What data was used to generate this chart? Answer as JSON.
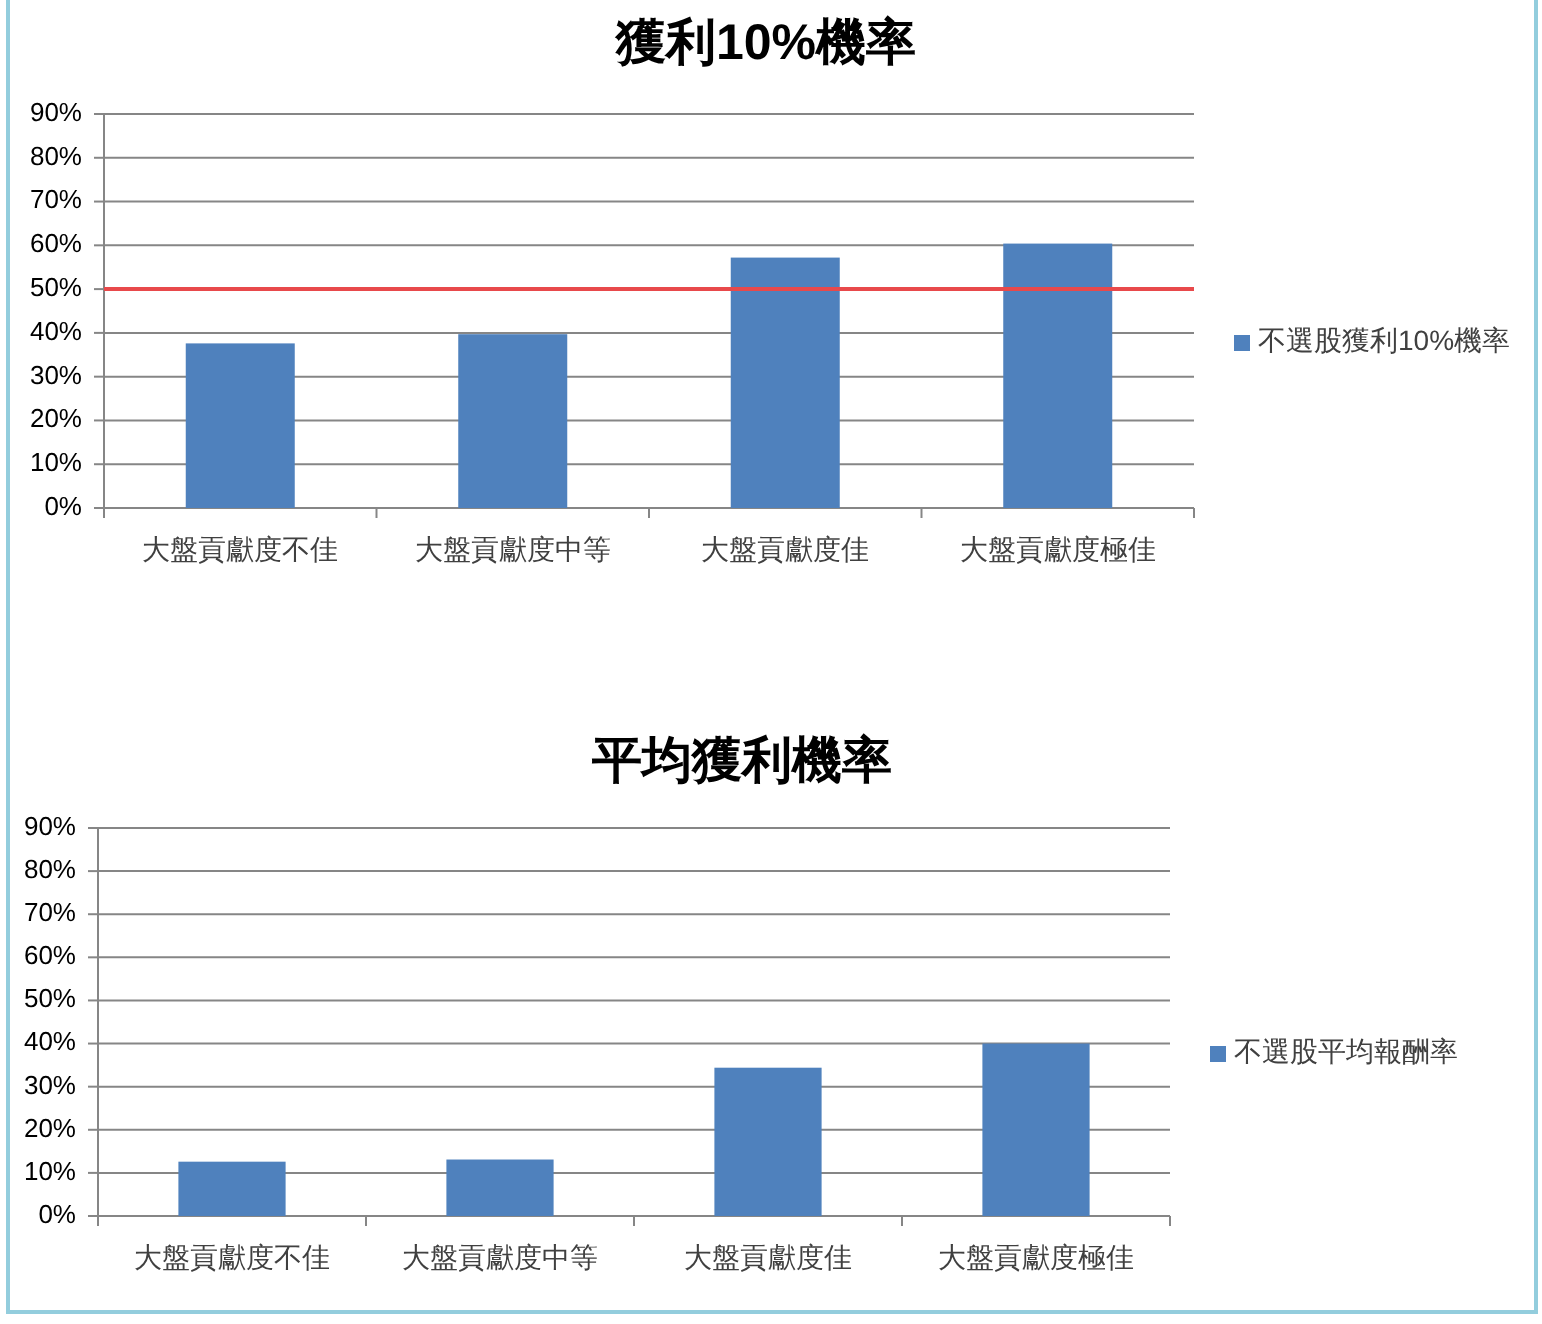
{
  "chart_data": [
    {
      "type": "bar",
      "title": "獲利10%機率",
      "categories": [
        "大盤貢獻度不佳",
        "大盤貢獻度中等",
        "大盤貢獻度佳",
        "大盤貢獻度極佳"
      ],
      "series": [
        {
          "name": "不選股獲利10%機率",
          "color": "#4f81bd",
          "values": [
            37.6,
            39.7,
            57.2,
            60.4
          ]
        }
      ],
      "ylim": [
        0,
        90
      ],
      "yticks": [
        {
          "value": 0,
          "label": "0%"
        },
        {
          "value": 10,
          "label": "10%"
        },
        {
          "value": 20,
          "label": "20%"
        },
        {
          "value": 30,
          "label": "30%"
        },
        {
          "value": 40,
          "label": "40%"
        },
        {
          "value": 50,
          "label": "50%"
        },
        {
          "value": 60,
          "label": "60%"
        },
        {
          "value": 70,
          "label": "70%"
        },
        {
          "value": 80,
          "label": "80%"
        },
        {
          "value": 90,
          "label": "90%"
        }
      ],
      "grid": "y",
      "legend": "right",
      "ref_lines": [
        {
          "axis": "y",
          "value": 50,
          "color": "#e8494b"
        }
      ]
    },
    {
      "type": "bar",
      "title": "平均獲利機率",
      "categories": [
        "大盤貢獻度不佳",
        "大盤貢獻度中等",
        "大盤貢獻度佳",
        "大盤貢獻度極佳"
      ],
      "series": [
        {
          "name": "不選股平均報酬率",
          "color": "#4f81bd",
          "values": [
            12.6,
            13.1,
            34.4,
            40.0
          ]
        }
      ],
      "ylim": [
        0,
        90
      ],
      "yticks": [
        {
          "value": 0,
          "label": "0%"
        },
        {
          "value": 10,
          "label": "10%"
        },
        {
          "value": 20,
          "label": "20%"
        },
        {
          "value": 30,
          "label": "30%"
        },
        {
          "value": 40,
          "label": "40%"
        },
        {
          "value": 50,
          "label": "50%"
        },
        {
          "value": 60,
          "label": "60%"
        },
        {
          "value": 70,
          "label": "70%"
        },
        {
          "value": 80,
          "label": "80%"
        },
        {
          "value": 90,
          "label": "90%"
        }
      ],
      "grid": "y",
      "legend": "right"
    }
  ]
}
